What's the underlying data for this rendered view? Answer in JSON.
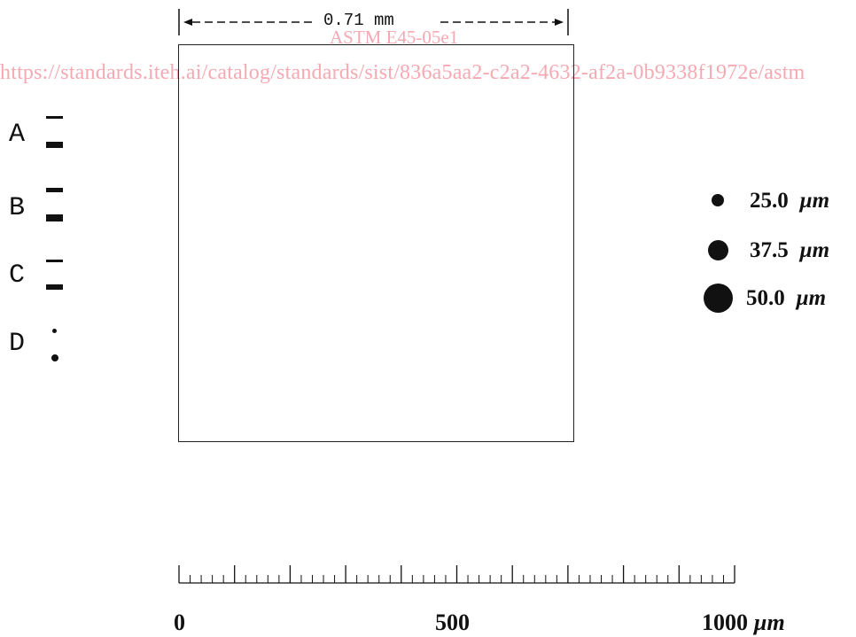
{
  "header": {
    "dimension_label": "0.71 mm"
  },
  "watermark": {
    "standard_code": "ASTM E45-05e1",
    "catalog_url": "https://standards.iteh.ai/catalog/standards/sist/836a5aa2-c2a2-4632-af2a-0b9338f1972e/astm"
  },
  "inclusion_types": [
    {
      "label": "A"
    },
    {
      "label": "B"
    },
    {
      "label": "C"
    },
    {
      "label": "D"
    }
  ],
  "size_legend": [
    {
      "value": "25.0",
      "unit": "µm"
    },
    {
      "value": "37.5",
      "unit": "µm"
    },
    {
      "value": "50.0",
      "unit": "µm"
    }
  ],
  "scale_bar": {
    "labels": [
      "0",
      "500",
      "1000"
    ],
    "unit": "µm",
    "min": 0,
    "max": 1000,
    "major_step": 100,
    "minor_step": 20
  }
}
